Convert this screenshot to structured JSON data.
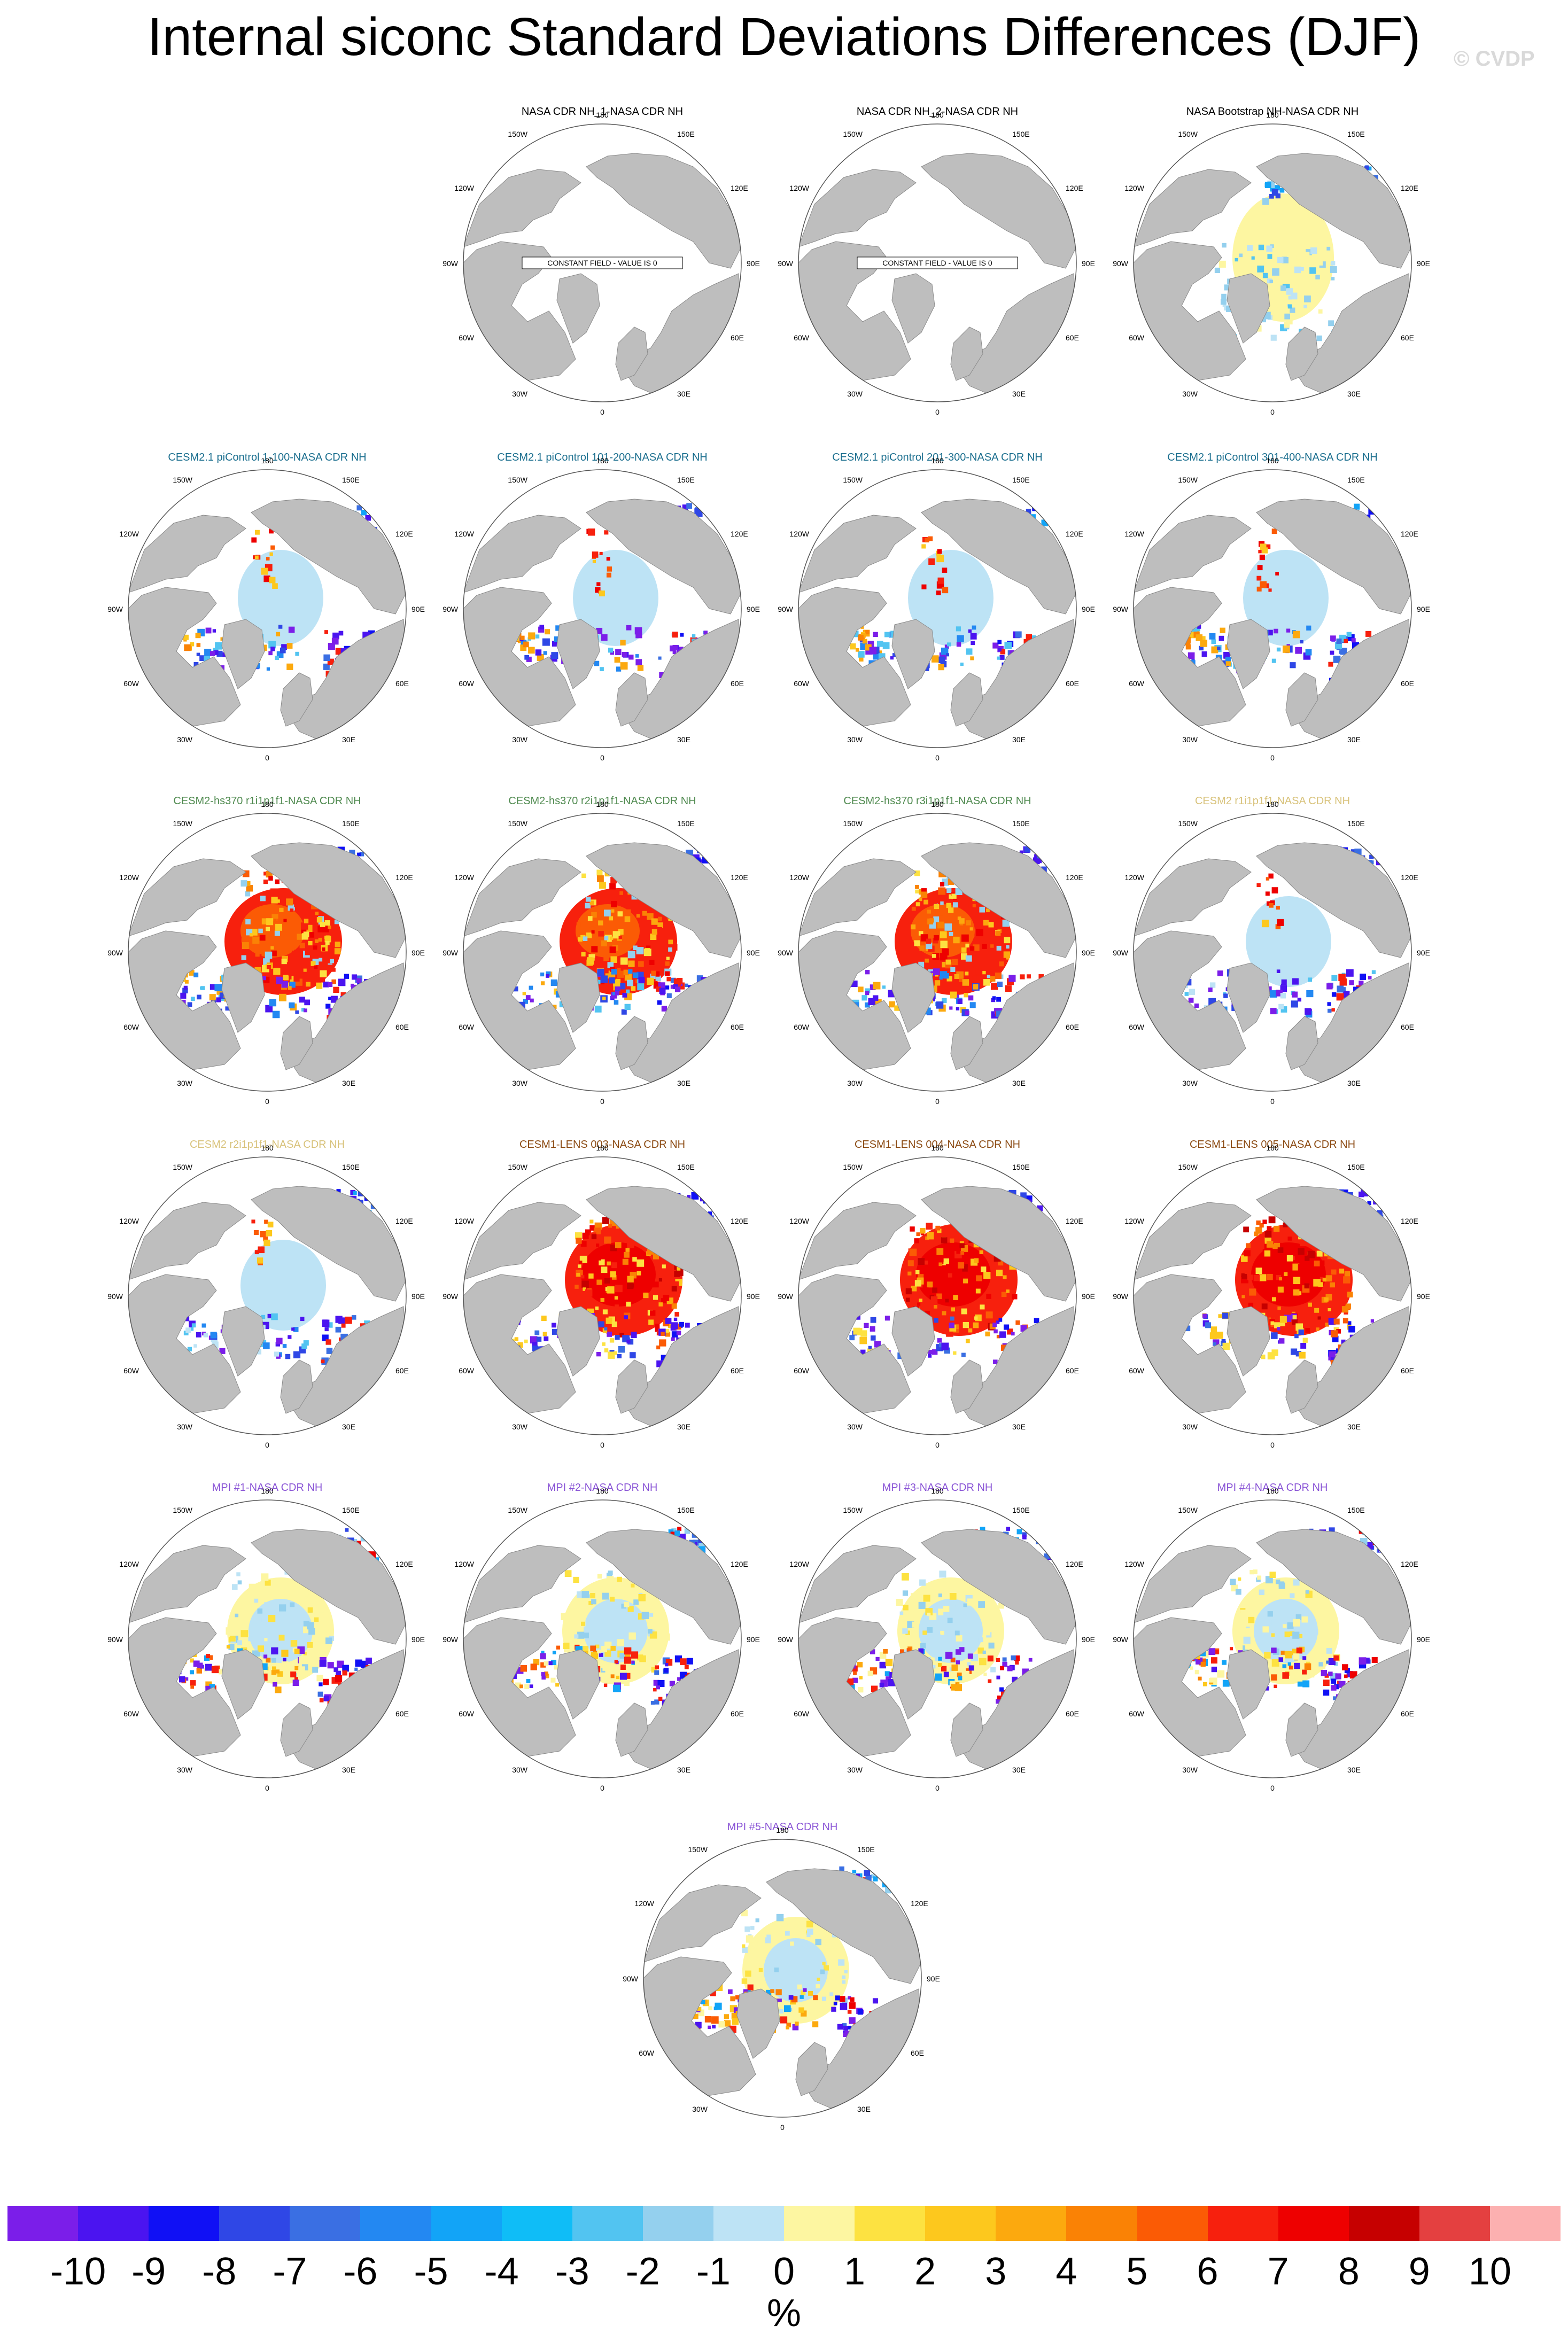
{
  "page": {
    "title": "Internal siconc Standard Deviations Differences (DJF)",
    "copyright": "© CVDP"
  },
  "map_labels": {
    "top": "180",
    "bottom": "0",
    "left": "90W",
    "right": "90E",
    "upper_left_1": "150W",
    "upper_left_2": "120W",
    "upper_right_1": "150E",
    "upper_right_2": "120E",
    "lower_left_1": "60W",
    "lower_left_2": "30W",
    "lower_right_1": "60E",
    "lower_right_2": "30E"
  },
  "constant_field_text": "CONSTANT FIELD - VALUE IS 0",
  "panels": [
    {
      "title": "NASA CDR NH_1-NASA CDR NH",
      "title_color": "#000000",
      "pattern": "constant"
    },
    {
      "title": "NASA CDR NH_2-NASA CDR NH",
      "title_color": "#000000",
      "pattern": "constant"
    },
    {
      "title": "NASA Bootstrap NH-NASA CDR NH",
      "title_color": "#000000",
      "pattern": "bootstrap"
    },
    {
      "title": "CESM2.1 piControl 1-100-NASA CDR NH",
      "title_color": "#1a6e8e",
      "pattern": "picontrol"
    },
    {
      "title": "CESM2.1 piControl 101-200-NASA CDR NH",
      "title_color": "#1a6e8e",
      "pattern": "picontrol"
    },
    {
      "title": "CESM2.1 piControl 201-300-NASA CDR NH",
      "title_color": "#1a6e8e",
      "pattern": "picontrol"
    },
    {
      "title": "CESM2.1 piControl 301-400-NASA CDR NH",
      "title_color": "#1a6e8e",
      "pattern": "picontrol"
    },
    {
      "title": "CESM2-hs370 r1i1p1f1-NASA CDR NH",
      "title_color": "#4f8a4f",
      "pattern": "hs370"
    },
    {
      "title": "CESM2-hs370 r2i1p1f1-NASA CDR NH",
      "title_color": "#4f8a4f",
      "pattern": "hs370"
    },
    {
      "title": "CESM2-hs370 r3i1p1f1-NASA CDR NH",
      "title_color": "#4f8a4f",
      "pattern": "hs370"
    },
    {
      "title": "CESM2 r1i1p1f1-NASA CDR NH",
      "title_color": "#d8c27a",
      "pattern": "cesm2"
    },
    {
      "title": "CESM2 r2i1p1f1-NASA CDR NH",
      "title_color": "#d8c27a",
      "pattern": "cesm2"
    },
    {
      "title": "CESM1-LENS 003-NASA CDR NH",
      "title_color": "#8b4a12",
      "pattern": "lens"
    },
    {
      "title": "CESM1-LENS 004-NASA CDR NH",
      "title_color": "#8b4a12",
      "pattern": "lens"
    },
    {
      "title": "CESM1-LENS 005-NASA CDR NH",
      "title_color": "#8b4a12",
      "pattern": "lens"
    },
    {
      "title": "MPI #1-NASA CDR NH",
      "title_color": "#8a55d6",
      "pattern": "mpi"
    },
    {
      "title": "MPI #2-NASA CDR NH",
      "title_color": "#8a55d6",
      "pattern": "mpi"
    },
    {
      "title": "MPI #3-NASA CDR NH",
      "title_color": "#8a55d6",
      "pattern": "mpi"
    },
    {
      "title": "MPI #4-NASA CDR NH",
      "title_color": "#8a55d6",
      "pattern": "mpi"
    },
    {
      "title": "MPI #5-NASA CDR NH",
      "title_color": "#8a55d6",
      "pattern": "mpi"
    }
  ],
  "colorbar": {
    "colors": [
      "#7b1ee9",
      "#4b14f0",
      "#1010f5",
      "#2f47e6",
      "#3a6fe3",
      "#2388f2",
      "#12a4f7",
      "#0fbdf7",
      "#52c4f1",
      "#94d0ee",
      "#bde3f5",
      "#fdf6a1",
      "#fde241",
      "#fdc81d",
      "#fca90e",
      "#fa8205",
      "#fb5b05",
      "#f7200d",
      "#ee0000",
      "#c60000",
      "#e44040",
      "#fcb0b0"
    ],
    "labels": [
      "-10",
      "-9",
      "-8",
      "-7",
      "-6",
      "-5",
      "-4",
      "-3",
      "-2",
      "-1",
      "0",
      "1",
      "2",
      "3",
      "4",
      "5",
      "6",
      "7",
      "8",
      "9",
      "10"
    ],
    "units": "%"
  }
}
